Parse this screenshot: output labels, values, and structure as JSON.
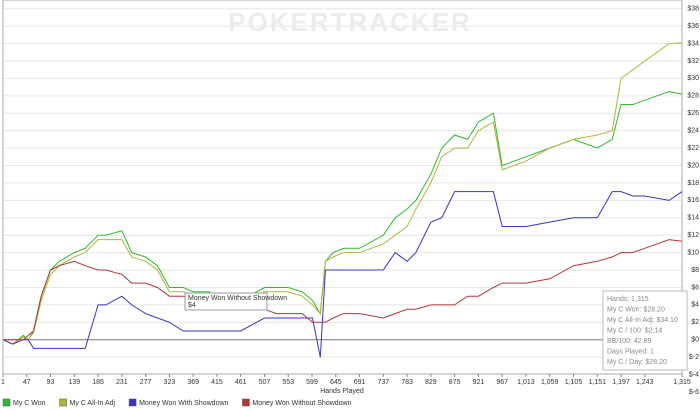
{
  "chart_data": {
    "type": "line",
    "watermark": "POKERTRACKER",
    "x_label": "Hands Played",
    "xlim": [
      1,
      1315
    ],
    "ylim": [
      -6,
      39
    ],
    "grid": true,
    "legend": "bottom",
    "xticks": [
      1,
      47,
      93,
      139,
      185,
      231,
      277,
      323,
      369,
      415,
      461,
      507,
      553,
      599,
      645,
      691,
      737,
      783,
      829,
      875,
      921,
      967,
      {
        "value": 1013,
        "label": "1,013"
      },
      {
        "value": 1059,
        "label": "1,059"
      },
      {
        "value": 1105,
        "label": "1,105"
      },
      {
        "value": 1151,
        "label": "1,151"
      },
      {
        "value": 1197,
        "label": "1,197"
      },
      {
        "value": 1243,
        "label": "1,243"
      },
      {
        "value": 1315,
        "label": "1,315"
      }
    ],
    "yticks": [
      {
        "value": 38,
        "label": "$38"
      },
      {
        "value": 36,
        "label": "$36"
      },
      {
        "value": 34,
        "label": "$34"
      },
      {
        "value": 32,
        "label": "$32"
      },
      {
        "value": 30,
        "label": "$30"
      },
      {
        "value": 28,
        "label": "$28"
      },
      {
        "value": 26,
        "label": "$26"
      },
      {
        "value": 24,
        "label": "$24"
      },
      {
        "value": 22,
        "label": "$22"
      },
      {
        "value": 20,
        "label": "$20"
      },
      {
        "value": 18,
        "label": "$18"
      },
      {
        "value": 16,
        "label": "$16"
      },
      {
        "value": 14,
        "label": "$14"
      },
      {
        "value": 12,
        "label": "$12"
      },
      {
        "value": 10,
        "label": "$10"
      },
      {
        "value": 8,
        "label": "$8"
      },
      {
        "value": 6,
        "label": "$6"
      },
      {
        "value": 4,
        "label": "$4"
      },
      {
        "value": 2,
        "label": "$2"
      },
      {
        "value": 0,
        "label": "$0"
      },
      {
        "value": -2,
        "label": "$-2"
      },
      {
        "value": -4,
        "label": "$-4"
      },
      {
        "value": -6,
        "label": "$-6"
      }
    ],
    "x": [
      1,
      20,
      40,
      50,
      60,
      75,
      93,
      110,
      139,
      160,
      185,
      200,
      231,
      250,
      277,
      300,
      323,
      350,
      369,
      400,
      415,
      461,
      507,
      530,
      553,
      580,
      600,
      615,
      625,
      640,
      660,
      691,
      737,
      760,
      783,
      800,
      829,
      850,
      875,
      900,
      921,
      950,
      967,
      1013,
      1059,
      1105,
      1151,
      1180,
      1197,
      1220,
      1243,
      1290,
      1315
    ],
    "series": [
      {
        "name": "My C Won",
        "color": "#2db82d",
        "values": [
          0,
          -0.5,
          0.5,
          0,
          1,
          5,
          8,
          9,
          10,
          10.5,
          12,
          12,
          12.5,
          10,
          9.5,
          8.5,
          6,
          6,
          5.5,
          5.5,
          5,
          4.5,
          6,
          6,
          6,
          5.5,
          4.5,
          3,
          9,
          10,
          10.5,
          10.5,
          12,
          14,
          15,
          16,
          19,
          22,
          23.5,
          23,
          25,
          26,
          20,
          21,
          22,
          23,
          22,
          23,
          27,
          27,
          27.5,
          28.5,
          28.2
        ]
      },
      {
        "name": "My C All-In Adj",
        "color": "#b4b43c",
        "values": [
          0,
          -0.5,
          0.3,
          0,
          0.8,
          4.5,
          7.5,
          8.5,
          9.5,
          10,
          11.5,
          11.5,
          11.5,
          9.5,
          9,
          8,
          5.5,
          5.5,
          5,
          5,
          4.5,
          4,
          5.5,
          5.5,
          5.5,
          5,
          4,
          3,
          9,
          9.5,
          10,
          10,
          11,
          12,
          13,
          15,
          18,
          21,
          22,
          22,
          24,
          25,
          19.5,
          20.5,
          22,
          23,
          23.5,
          24,
          30,
          31,
          32,
          34,
          34.1
        ]
      },
      {
        "name": "Money Won With Showdown",
        "color": "#3535c8",
        "values": [
          0,
          -0.5,
          0,
          0,
          -1,
          -1,
          -1,
          -1,
          -1,
          -1,
          4,
          4,
          5,
          4,
          3,
          2.5,
          2,
          1,
          1,
          1,
          1,
          1,
          2.5,
          2.5,
          2.5,
          2.5,
          2.5,
          -2,
          8,
          8,
          8,
          8,
          8,
          10,
          9,
          10,
          13.5,
          14,
          17,
          17,
          17,
          17,
          13,
          13,
          13.5,
          14,
          14,
          17,
          17,
          16.5,
          16.5,
          16,
          17
        ]
      },
      {
        "name": "Money Won Without Showdown",
        "color": "#b83434",
        "values": [
          0,
          0,
          0,
          0.5,
          1,
          5,
          8,
          8.5,
          9,
          8.5,
          8,
          8,
          7.5,
          6.5,
          6.5,
          6,
          5,
          5,
          4.5,
          4.5,
          4,
          3.5,
          3.5,
          3,
          3,
          3,
          2,
          2,
          2,
          2.5,
          3,
          3,
          2.5,
          3,
          3.5,
          3.5,
          4,
          4,
          4,
          5,
          5,
          6,
          6.5,
          6.5,
          7,
          8.5,
          9,
          9.5,
          10,
          10,
          10.5,
          11.5,
          11.3
        ]
      }
    ],
    "tooltip": {
      "title": "Money Won Without Showdown",
      "value": "$4"
    },
    "info_box": [
      "Hands: 1,315",
      "My C Won: $28.20",
      "My C All-In Adj: $34.10",
      "My C / 100: $2.14",
      "BB/100: 42.89",
      "Days Played: 1",
      "My C / Day: $28.20"
    ]
  }
}
